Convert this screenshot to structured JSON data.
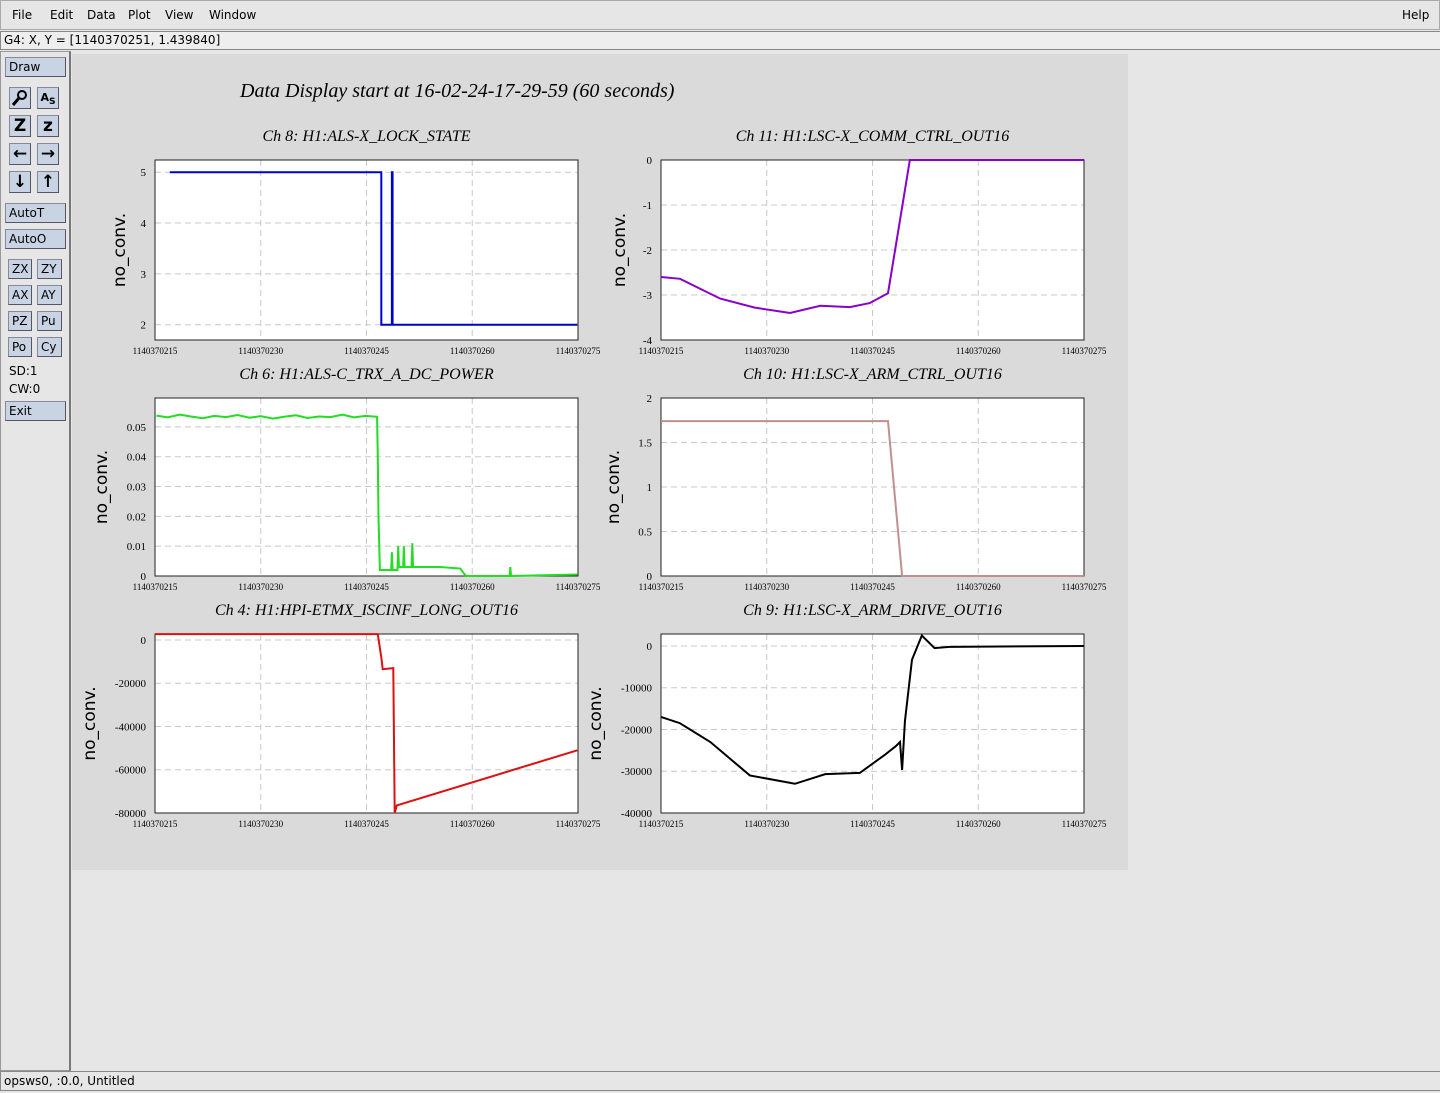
{
  "menu": [
    "File",
    "Edit",
    "Data",
    "Plot",
    "View",
    "Window"
  ],
  "help": "Help",
  "cursor_readout": "G4: X, Y = [1140370251, 1.439840]",
  "toolbar": {
    "draw": "Draw",
    "icon_labels": [
      "Z",
      "z"
    ],
    "auto_buttons": [
      "AutoT",
      "AutoO"
    ],
    "pair_buttons": [
      [
        "ZX",
        "ZY"
      ],
      [
        "AX",
        "AY"
      ],
      [
        "PZ",
        "Pu"
      ],
      [
        "Po",
        "Cy"
      ]
    ],
    "status": [
      "SD:1",
      "CW:0"
    ],
    "exit": "Exit"
  },
  "display_title": "Data Display start at 16-02-24-17-29-59 (60 seconds)",
  "footer": "opsws0, :0.0, Untitled",
  "chart_data": [
    {
      "type": "line",
      "title": "Ch 8: H1:ALS-X_LOCK_STATE",
      "ylabel": "no_conv.",
      "color": "#0000cc",
      "grid": true,
      "x": [
        1140370217.1,
        1140370247.1,
        1140370247.1,
        1140370248.6,
        1140370248.6,
        1140370248.7,
        1140370248.7,
        1140370274.9
      ],
      "values": [
        5,
        5,
        2,
        2,
        5,
        5,
        2,
        2
      ],
      "xlim": [
        1140370215,
        1140370275
      ],
      "xticks": [
        1140370215,
        1140370230,
        1140370245,
        1140370260,
        1140370275
      ],
      "ylim": [
        1.7,
        5.24
      ],
      "yticks": [
        2,
        3,
        4,
        5
      ]
    },
    {
      "type": "line",
      "title": "Ch 11: H1:LSC-X_COMM_CTRL_OUT16",
      "ylabel": "no_conv.",
      "color": "#8800cc",
      "grid": true,
      "x": [
        1140370215,
        1140370217.7,
        1140370223.4,
        1140370228.3,
        1140370233.3,
        1140370237.6,
        1140370241.8,
        1140370244.6,
        1140370247.2,
        1140370250.3,
        1140370275
      ],
      "values": [
        -2.6,
        -2.64,
        -3.08,
        -3.28,
        -3.4,
        -3.24,
        -3.27,
        -3.18,
        -2.96,
        0,
        0
      ],
      "xlim": [
        1140370215,
        1140370275
      ],
      "xticks": [
        1140370215,
        1140370230,
        1140370245,
        1140370260,
        1140370275
      ],
      "ylim": [
        -4,
        0
      ],
      "yticks": [
        -4,
        -3,
        -2,
        -1,
        0
      ]
    },
    {
      "type": "line",
      "title": "Ch 6: H1:ALS-C_TRX_A_DC_POWER",
      "ylabel": "no_conv.",
      "color": "#22dd22",
      "grid": true,
      "x": [
        1140370215.2,
        1140370216.8,
        1140370218.5,
        1140370220.1,
        1140370221.8,
        1140370223.4,
        1140370225.1,
        1140370226.7,
        1140370228.4,
        1140370230,
        1140370231.7,
        1140370233.3,
        1140370235,
        1140370236.6,
        1140370238.3,
        1140370239.9,
        1140370241.6,
        1140370243.2,
        1140370244.9,
        1140370246.5,
        1140370246.6,
        1140370246.7,
        1140370246.9,
        1140370248.5,
        1140370248.6,
        1140370248.7,
        1140370249.4,
        1140370249.5,
        1140370249.6,
        1140370250.2,
        1140370250.3,
        1140370250.4,
        1140370251.4,
        1140370251.5,
        1140370251.6,
        1140370255.4,
        1140370258.3,
        1140370259.1,
        1140370265.3,
        1140370265.4,
        1140370265.5,
        1140370274.9
      ],
      "values": [
        0.0538,
        0.0532,
        0.0541,
        0.0535,
        0.0529,
        0.0537,
        0.0533,
        0.054,
        0.0531,
        0.0536,
        0.0528,
        0.0534,
        0.0539,
        0.053,
        0.0535,
        0.0533,
        0.0541,
        0.0532,
        0.0537,
        0.0534,
        0.04,
        0.02,
        0.002,
        0.002,
        0.008,
        0.002,
        0.002,
        0.01,
        0.003,
        0.003,
        0.01,
        0.003,
        0.003,
        0.011,
        0.003,
        0.003,
        0.0025,
        0,
        0,
        0.003,
        0,
        0.0005
      ],
      "xlim": [
        1140370215,
        1140370275
      ],
      "xticks": [
        1140370215,
        1140370230,
        1140370245,
        1140370260,
        1140370275
      ],
      "ylim": [
        0,
        0.0597
      ],
      "yticks": [
        0,
        0.01,
        0.02,
        0.03,
        0.04,
        0.05
      ]
    },
    {
      "type": "line",
      "title": "Ch 10: H1:LSC-X_ARM_CTRL_OUT16",
      "ylabel": "no_conv.",
      "color": "#c09090",
      "grid": true,
      "x": [
        1140370215,
        1140370247.2,
        1140370249.2,
        1140370275
      ],
      "values": [
        1.74,
        1.74,
        0,
        0
      ],
      "xlim": [
        1140370215,
        1140370275
      ],
      "xticks": [
        1140370215,
        1140370230,
        1140370245,
        1140370260,
        1140370275
      ],
      "ylim": [
        0,
        2
      ],
      "yticks": [
        0,
        0.5,
        1,
        1.5,
        2
      ]
    },
    {
      "type": "line",
      "title": "Ch 4: H1:HPI-ETMX_ISCINF_LONG_OUT16",
      "ylabel": "no_conv.",
      "color": "#dd1111",
      "grid": true,
      "x": [
        1140370215,
        1140370246.6,
        1140370247.1,
        1140370247.3,
        1140370248.8,
        1140370249,
        1140370249.3,
        1140370274.9
      ],
      "values": [
        2700,
        2700,
        -8000,
        -13500,
        -13000,
        -80000,
        -76500,
        -51000
      ],
      "xlim": [
        1140370215,
        1140370275
      ],
      "xticks": [
        1140370215,
        1140370230,
        1140370245,
        1140370260,
        1140370275
      ],
      "ylim": [
        -80000,
        2770
      ],
      "yticks": [
        -80000,
        -60000,
        -40000,
        -20000,
        0
      ]
    },
    {
      "type": "line",
      "title": "Ch 9: H1:LSC-X_ARM_DRIVE_OUT16",
      "ylabel": "no_conv.",
      "color": "#000000",
      "grid": true,
      "x": [
        1140370215,
        1140370217.7,
        1140370222,
        1140370227.6,
        1140370234,
        1140370238.3,
        1140370243.2,
        1140370246.8,
        1140370248.3,
        1140370248.9,
        1140370249.2,
        1140370249.6,
        1140370250.6,
        1140370252,
        1140370253.8,
        1140370255.9,
        1140370275
      ],
      "values": [
        -17000,
        -18500,
        -23000,
        -31000,
        -33000,
        -30700,
        -30400,
        -26000,
        -24000,
        -23000,
        -29700,
        -18000,
        -3300,
        2500,
        -500,
        -200,
        0
      ],
      "xlim": [
        1140370215,
        1140370275
      ],
      "xticks": [
        1140370215,
        1140370230,
        1140370245,
        1140370260,
        1140370275
      ],
      "ylim": [
        -40000,
        2870
      ],
      "yticks": [
        -40000,
        -30000,
        -20000,
        -10000,
        0
      ]
    }
  ]
}
